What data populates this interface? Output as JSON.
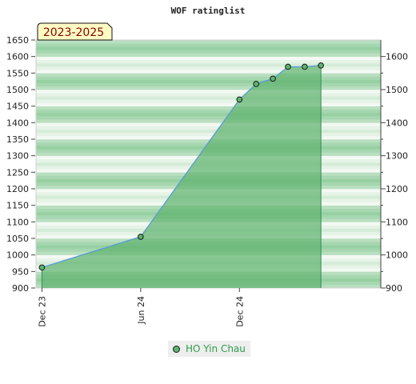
{
  "chart_data": {
    "type": "area",
    "title": "WOF ratinglist",
    "period_label": "2023-2025",
    "x_ticks": [
      "Dec 23",
      "Jun 24",
      "Dec 24"
    ],
    "x_tick_dates": [
      "2023-12-01",
      "2024-06-01",
      "2024-12-01"
    ],
    "x_range": [
      "2023-11-20",
      "2025-08-20"
    ],
    "ylim": [
      900,
      1650
    ],
    "y_ticks_left": [
      900,
      950,
      1000,
      1050,
      1100,
      1150,
      1200,
      1250,
      1300,
      1350,
      1400,
      1450,
      1500,
      1550,
      1600,
      1650
    ],
    "y_ticks_right": [
      900,
      1000,
      1100,
      1200,
      1300,
      1400,
      1500,
      1600
    ],
    "series": [
      {
        "name": "HO Yin Chau",
        "color": "#5fb36f",
        "line_color": "#5b9bd5",
        "points": [
          {
            "x": "2023-12-01",
            "y": 962
          },
          {
            "x": "2024-06-01",
            "y": 1055
          },
          {
            "x": "2024-12-01",
            "y": 1470
          },
          {
            "x": "2025-01-01",
            "y": 1517
          },
          {
            "x": "2025-02-01",
            "y": 1533
          },
          {
            "x": "2025-03-01",
            "y": 1569
          },
          {
            "x": "2025-04-01",
            "y": 1569
          },
          {
            "x": "2025-05-01",
            "y": 1573
          }
        ]
      }
    ],
    "legend_position": "bottom-center",
    "grid": false
  }
}
